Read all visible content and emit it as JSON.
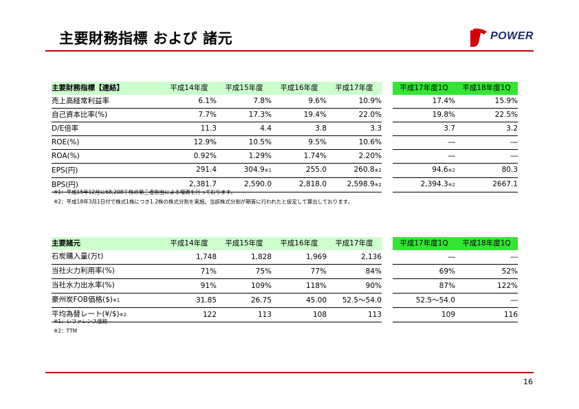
{
  "title": "主要財務指標 および 諸元",
  "logo": {
    "text": "POWER",
    "mark": "J",
    "icon": "jpower-logo-icon"
  },
  "colors": {
    "accent_line": "#c00000",
    "header_bg": "#ccffcc",
    "header_highlight": "#33e633"
  },
  "page_number": "16",
  "table1": {
    "header": {
      "label": "主要財務指標【連結】",
      "cols": [
        "平成14年度",
        "平成15年度",
        "平成16年度",
        "平成17年度"
      ],
      "qcols": [
        "平成17年度1Q",
        "平成18年度1Q"
      ]
    },
    "rows": [
      {
        "label": "売上高経常利益率",
        "v": [
          "6.1%",
          "7.8%",
          "9.6%",
          "10.9%"
        ],
        "q": [
          "17.4%",
          "15.9%"
        ]
      },
      {
        "label": "自己資本比率(%)",
        "v": [
          "7.7%",
          "17.3%",
          "19.4%",
          "22.0%"
        ],
        "q": [
          "19.8%",
          "22.5%"
        ]
      },
      {
        "label": "D/E倍率",
        "v": [
          "11.3",
          "4.4",
          "3.8",
          "3.3"
        ],
        "q": [
          "3.7",
          "3.2"
        ]
      },
      {
        "label": "ROE(%)",
        "v": [
          "12.9%",
          "10.5%",
          "9.5%",
          "10.6%"
        ],
        "q": [
          "―",
          "―"
        ]
      },
      {
        "label": "ROA(%)",
        "v": [
          "0.92%",
          "1.29%",
          "1.74%",
          "2.20%"
        ],
        "q": [
          "―",
          "―"
        ]
      },
      {
        "label": "EPS(円)",
        "v": [
          "291.4",
          "304.9",
          "255.0",
          "260.8"
        ],
        "vs": [
          "",
          "※1",
          "",
          "※2"
        ],
        "q": [
          "94.6",
          "80.3"
        ],
        "qs": [
          "※2",
          ""
        ]
      },
      {
        "label": "BPS(円)",
        "v": [
          "2,381.7",
          "2,590.0",
          "2,818.0",
          "2,598.9"
        ],
        "vs": [
          "",
          "",
          "",
          "※2"
        ],
        "q": [
          "2,394.3",
          "2667.1"
        ],
        "qs": [
          "※2",
          ""
        ]
      }
    ],
    "notes": [
      "※1：平成15年12月に68,208千株の第三者割当による増資を行っております。",
      "※2：平成18年3月1日付で株式1株につき1.2株の株式分割を実施。当該株式分割が期首に行われたと仮定して算出しております。"
    ]
  },
  "table2": {
    "header": {
      "label": "主要諸元",
      "cols": [
        "平成14年度",
        "平成15年度",
        "平成16年度",
        "平成17年度"
      ],
      "qcols": [
        "平成17年度1Q",
        "平成18年度1Q"
      ]
    },
    "rows": [
      {
        "label": "石炭購入量(万t)",
        "ls": "",
        "v": [
          "1,748",
          "1,828",
          "1,969",
          "2,136"
        ],
        "q": [
          "―",
          "―"
        ]
      },
      {
        "label": "当社火力利用率(%)",
        "ls": "",
        "v": [
          "71%",
          "75%",
          "77%",
          "84%"
        ],
        "q": [
          "69%",
          "52%"
        ]
      },
      {
        "label": "当社水力出水率(%)",
        "ls": "",
        "v": [
          "91%",
          "109%",
          "118%",
          "90%"
        ],
        "q": [
          "87%",
          "122%"
        ]
      },
      {
        "label": "豪州炭FOB価格($)",
        "ls": "※1",
        "v": [
          "31.85",
          "26.75",
          "45.00",
          "52.5～54.0"
        ],
        "q": [
          "52.5～54.0",
          "―"
        ]
      },
      {
        "label": "平均為替レート(¥/$)",
        "ls": "※2",
        "v": [
          "122",
          "113",
          "108",
          "113"
        ],
        "q": [
          "109",
          "116"
        ]
      }
    ],
    "notes": [
      "※1：レファレンス価格",
      "※2：TTM"
    ]
  }
}
